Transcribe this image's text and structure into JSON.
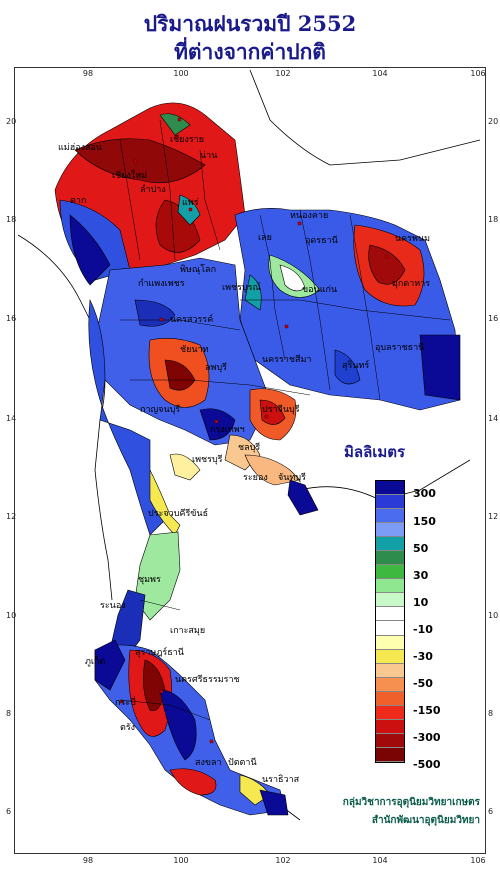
{
  "title": {
    "line1": "ปริมาณฝนรวมปี 2552",
    "line2": "ที่ต่างจากค่าปกติ"
  },
  "axes": {
    "longitude_ticks": [
      "98",
      "100",
      "102",
      "104",
      "106"
    ],
    "latitude_ticks": [
      "20",
      "18",
      "16",
      "14",
      "12",
      "10",
      "8",
      "6"
    ]
  },
  "legend": {
    "title": "มิลลิเมตร",
    "labels": [
      "300",
      "150",
      "50",
      "30",
      "10",
      "-10",
      "-30",
      "-50",
      "-150",
      "-300",
      "-500"
    ],
    "colors": [
      "#0a0a96",
      "#2a3ad6",
      "#4c6cf0",
      "#7c9cf6",
      "#12a0a6",
      "#2e8c4c",
      "#3fb83f",
      "#8fe88f",
      "#c8f8c8",
      "#ffffff",
      "#ffffff",
      "#ffffb0",
      "#f5e850",
      "#f8c890",
      "#f59050",
      "#f0602a",
      "#ee2a1a",
      "#cc1010",
      "#a00a0a",
      "#7a0404"
    ]
  },
  "places": [
    {
      "name": "เชียงราย"
    },
    {
      "name": "เชียงใหม่"
    },
    {
      "name": "แม่ฮ่องสอน"
    },
    {
      "name": "น่าน"
    },
    {
      "name": "ลำปาง"
    },
    {
      "name": "แพร่"
    },
    {
      "name": "ตาก"
    },
    {
      "name": "หนองคาย"
    },
    {
      "name": "อุดรธานี"
    },
    {
      "name": "นครพนม"
    },
    {
      "name": "มุกดาหาร"
    },
    {
      "name": "พิษณุโลก"
    },
    {
      "name": "กำแพงเพชร"
    },
    {
      "name": "เลย"
    },
    {
      "name": "ขอนแก่น"
    },
    {
      "name": "เพชรบูรณ์"
    },
    {
      "name": "นครสวรรค์"
    },
    {
      "name": "ชัยนาท"
    },
    {
      "name": "ลพบุรี"
    },
    {
      "name": "นครราชสีมา"
    },
    {
      "name": "สุรินทร์"
    },
    {
      "name": "อุบลราชธานี"
    },
    {
      "name": "กาญจนบุรี"
    },
    {
      "name": "กรุงเทพฯ"
    },
    {
      "name": "ปราจีนบุรี"
    },
    {
      "name": "ชลบุรี"
    },
    {
      "name": "ระยอง"
    },
    {
      "name": "จันทบุรี"
    },
    {
      "name": "เพชรบุรี"
    },
    {
      "name": "ประจวบคีรีขันธ์"
    },
    {
      "name": "ชุมพร"
    },
    {
      "name": "ระนอง"
    },
    {
      "name": "เกาะสมุย"
    },
    {
      "name": "สุราษฎร์ธานี"
    },
    {
      "name": "นครศรีธรรมราช"
    },
    {
      "name": "ภูเก็ต"
    },
    {
      "name": "กระบี่"
    },
    {
      "name": "ตรัง"
    },
    {
      "name": "สงขลา"
    },
    {
      "name": "ปัตตานี"
    },
    {
      "name": "นราธิวาส"
    }
  ],
  "credits": {
    "line1": "กลุ่มวิชาการอุตุนิยมวิทยาเกษตร",
    "line2": "สำนักพัฒนาอุตุนิยมวิทยา"
  }
}
